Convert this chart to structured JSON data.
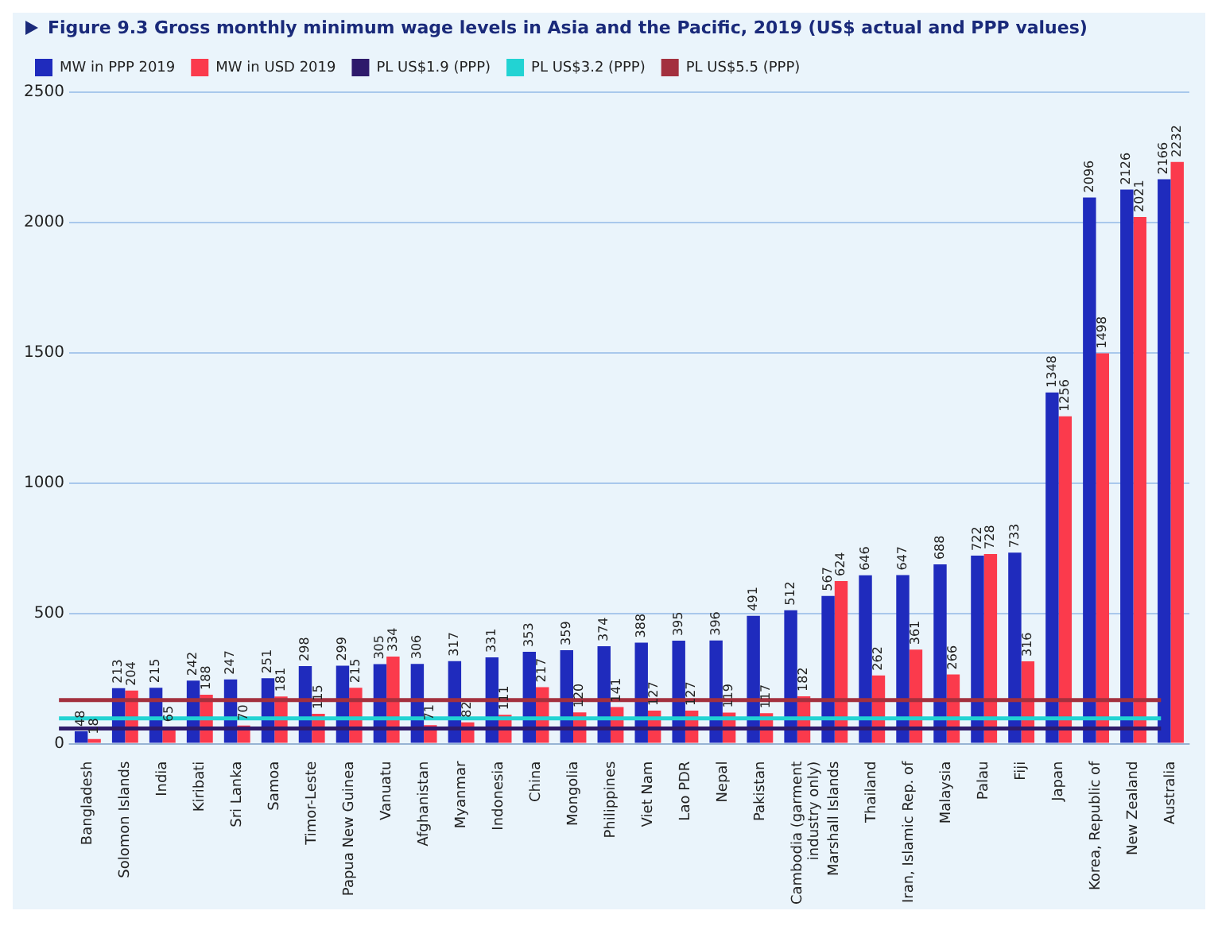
{
  "chart_data": {
    "type": "bar",
    "title": "Figure 9.3  Gross monthly minimum wage levels in Asia and the Pacific, 2019 (US$ actual and PPP values)",
    "categories": [
      "Bangladesh",
      "Solomon Islands",
      "India",
      "Kiribati",
      "Sri Lanka",
      "Samoa",
      "Timor-Leste",
      "Papua New Guinea",
      "Vanuatu",
      "Afghanistan",
      "Myanmar",
      "Indonesia",
      "China",
      "Mongolia",
      "Philippines",
      "Viet Nam",
      "Lao PDR",
      "Nepal",
      "Pakistan",
      "Cambodia (garment industry only)",
      "Marshall Islands",
      "Thailand",
      "Iran, Islamic Rep. of",
      "Malaysia",
      "Palau",
      "Fiji",
      "Japan",
      "Korea, Republic of",
      "New Zealand",
      "Australia"
    ],
    "series": [
      {
        "name": "MW in PPP 2019",
        "color": "#1f2bbd",
        "values": [
          48,
          213,
          215,
          242,
          247,
          251,
          298,
          299,
          305,
          306,
          317,
          331,
          353,
          359,
          374,
          388,
          395,
          396,
          491,
          512,
          567,
          646,
          647,
          688,
          722,
          733,
          1348,
          2096,
          2126,
          2166
        ]
      },
      {
        "name": "MW in USD 2019",
        "color": "#fb3a4c",
        "values": [
          18,
          204,
          65,
          188,
          70,
          181,
          115,
          215,
          334,
          71,
          82,
          111,
          217,
          120,
          141,
          127,
          127,
          119,
          117,
          182,
          624,
          262,
          361,
          266,
          728,
          316,
          1256,
          1498,
          2021,
          2232
        ]
      }
    ],
    "ref_lines": [
      {
        "axis": "y",
        "value": 58,
        "label": "PL US$1.9 (PPP)",
        "color": "#2e1a6b"
      },
      {
        "axis": "y",
        "value": 97,
        "label": "PL US$3.2 (PPP)",
        "color": "#22d3d3"
      },
      {
        "axis": "y",
        "value": 167,
        "label": "PL US$5.5 (PPP)",
        "color": "#a3303e"
      }
    ],
    "ylim": [
      0,
      2500
    ],
    "yticks": [
      0,
      500,
      1000,
      1500,
      2000,
      2500
    ],
    "grid": "y",
    "legend": "top left",
    "data_labels": true
  }
}
